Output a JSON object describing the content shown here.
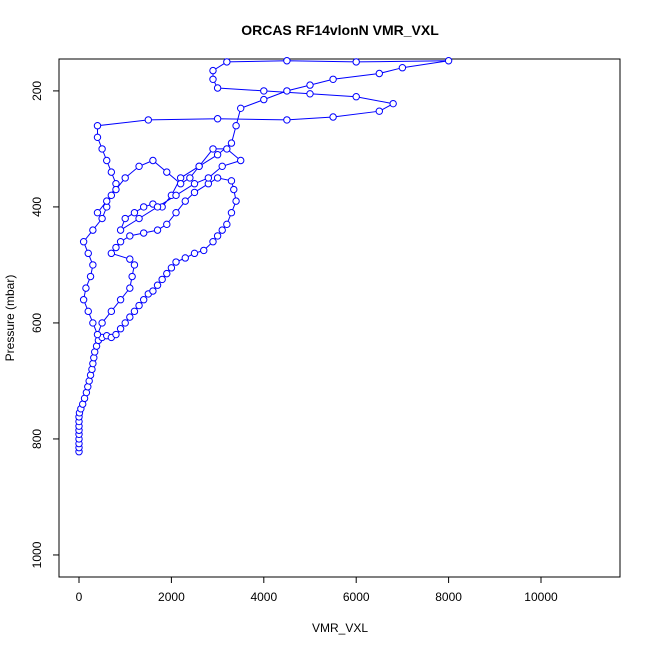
{
  "chart_data": {
    "type": "line",
    "markers": true,
    "title": "ORCAS RF14vlonN VMR_VXL",
    "xlabel": "VMR_VXL",
    "ylabel": "Pressure (mbar)",
    "color": "#0000ff",
    "xlim": [
      -433,
      11710
    ],
    "xticks": [
      0,
      2000,
      4000,
      6000,
      8000,
      10000
    ],
    "ylim": [
      1038,
      145
    ],
    "yticks": [
      200,
      400,
      600,
      800,
      1000
    ],
    "x": [
      0,
      0,
      0,
      0,
      0,
      0,
      0,
      0,
      0,
      10,
      40,
      80,
      120,
      160,
      190,
      220,
      250,
      280,
      300,
      320,
      340,
      380,
      420,
      500,
      600,
      700,
      800,
      900,
      1000,
      1100,
      1200,
      1300,
      1400,
      1500,
      1600,
      1700,
      1800,
      1900,
      2000,
      2100,
      2300,
      2500,
      2700,
      2900,
      3000,
      3100,
      3200,
      3300,
      3400,
      3350,
      3300,
      3000,
      2800,
      2500,
      2300,
      2100,
      1900,
      1700,
      1400,
      1100,
      900,
      800,
      700,
      1100,
      1200,
      1150,
      1100,
      900,
      700,
      500,
      400,
      300,
      200,
      100,
      150,
      250,
      300,
      200,
      100,
      300,
      500,
      600,
      700,
      800,
      700,
      600,
      500,
      400,
      400,
      1500,
      3000,
      4500,
      5500,
      6500,
      6800,
      6000,
      5000,
      4000,
      3000,
      2900,
      2900,
      3200,
      4500,
      6000,
      8000,
      7000,
      6500,
      5500,
      5000,
      4500,
      4000,
      3500,
      3400,
      3300,
      3000,
      2600,
      2200,
      2000,
      1800,
      1600,
      1400,
      1200,
      1000,
      900,
      1300,
      1700,
      2100,
      2500,
      2800,
      3100,
      3500,
      3200,
      2900,
      2600,
      2400,
      2200,
      1900,
      1600,
      1300,
      1000,
      800,
      600,
      400
    ],
    "values": [
      822,
      815,
      808,
      800,
      792,
      785,
      778,
      770,
      762,
      755,
      748,
      740,
      730,
      720,
      710,
      700,
      690,
      680,
      670,
      660,
      650,
      640,
      630,
      625,
      622,
      625,
      620,
      610,
      600,
      590,
      580,
      570,
      560,
      550,
      545,
      535,
      525,
      515,
      505,
      495,
      488,
      480,
      475,
      460,
      450,
      440,
      430,
      410,
      390,
      370,
      355,
      350,
      360,
      375,
      390,
      410,
      430,
      440,
      445,
      450,
      460,
      470,
      480,
      490,
      500,
      520,
      540,
      560,
      580,
      600,
      620,
      600,
      580,
      560,
      540,
      520,
      500,
      480,
      460,
      440,
      420,
      400,
      380,
      360,
      340,
      320,
      300,
      280,
      260,
      250,
      248,
      250,
      245,
      235,
      222,
      210,
      205,
      200,
      195,
      180,
      165,
      150,
      148,
      150,
      148,
      160,
      170,
      180,
      190,
      200,
      215,
      230,
      260,
      290,
      310,
      330,
      350,
      380,
      400,
      395,
      400,
      410,
      420,
      440,
      420,
      400,
      380,
      360,
      350,
      330,
      320,
      300,
      300,
      330,
      350,
      360,
      340,
      320,
      330,
      350,
      370,
      390,
      410
    ]
  }
}
